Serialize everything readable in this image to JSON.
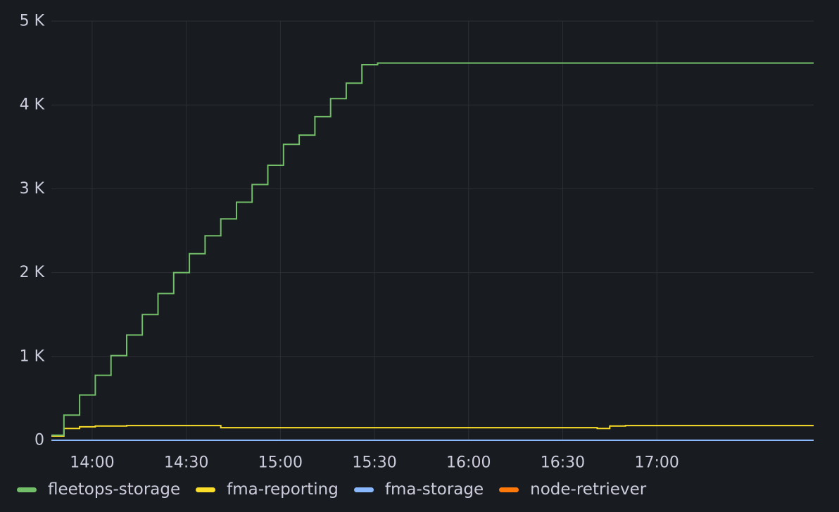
{
  "chart_data": {
    "type": "line",
    "line_style": "step",
    "grid": true,
    "legend_position": "bottom-left",
    "background": "#181b1f",
    "grid_color": "#2c2f35",
    "tick_label_color": "#ccccdc",
    "x_domain": [
      "13:47",
      "17:50"
    ],
    "ylim": [
      0,
      5000
    ],
    "x_ticks": [
      "14:00",
      "14:30",
      "15:00",
      "15:30",
      "16:00",
      "16:30",
      "17:00"
    ],
    "y_ticks": [
      {
        "value": 0,
        "label": "0"
      },
      {
        "value": 1000,
        "label": "1 K"
      },
      {
        "value": 2000,
        "label": "2 K"
      },
      {
        "value": 3000,
        "label": "3 K"
      },
      {
        "value": 4000,
        "label": "4 K"
      },
      {
        "value": 5000,
        "label": "5 K"
      }
    ],
    "series": [
      {
        "name": "fleetops-storage",
        "color": "#73bf69",
        "points": [
          [
            "13:47",
            60
          ],
          [
            "13:51",
            300
          ],
          [
            "13:56",
            540
          ],
          [
            "14:01",
            775
          ],
          [
            "14:06",
            1010
          ],
          [
            "14:11",
            1255
          ],
          [
            "14:16",
            1500
          ],
          [
            "14:21",
            1750
          ],
          [
            "14:26",
            2000
          ],
          [
            "14:31",
            2225
          ],
          [
            "14:36",
            2440
          ],
          [
            "14:41",
            2640
          ],
          [
            "14:46",
            2840
          ],
          [
            "14:51",
            3050
          ],
          [
            "14:56",
            3280
          ],
          [
            "15:01",
            3530
          ],
          [
            "15:06",
            3640
          ],
          [
            "15:11",
            3860
          ],
          [
            "15:16",
            4075
          ],
          [
            "15:21",
            4260
          ],
          [
            "15:26",
            4480
          ],
          [
            "15:31",
            4500
          ],
          [
            "17:50",
            4500
          ]
        ]
      },
      {
        "name": "fma-reporting",
        "color": "#fade2a",
        "points": [
          [
            "13:47",
            50
          ],
          [
            "13:51",
            140
          ],
          [
            "13:56",
            160
          ],
          [
            "14:01",
            170
          ],
          [
            "14:11",
            175
          ],
          [
            "14:41",
            150
          ],
          [
            "16:41",
            140
          ],
          [
            "16:45",
            170
          ],
          [
            "16:50",
            175
          ],
          [
            "17:50",
            175
          ]
        ]
      },
      {
        "name": "fma-storage",
        "color": "#8ab8ff",
        "points": [
          [
            "13:47",
            0
          ],
          [
            "17:50",
            0
          ]
        ]
      },
      {
        "name": "node-retriever",
        "color": "#ff780a",
        "points": [
          [
            "13:47",
            0
          ],
          [
            "17:50",
            0
          ]
        ]
      }
    ]
  }
}
